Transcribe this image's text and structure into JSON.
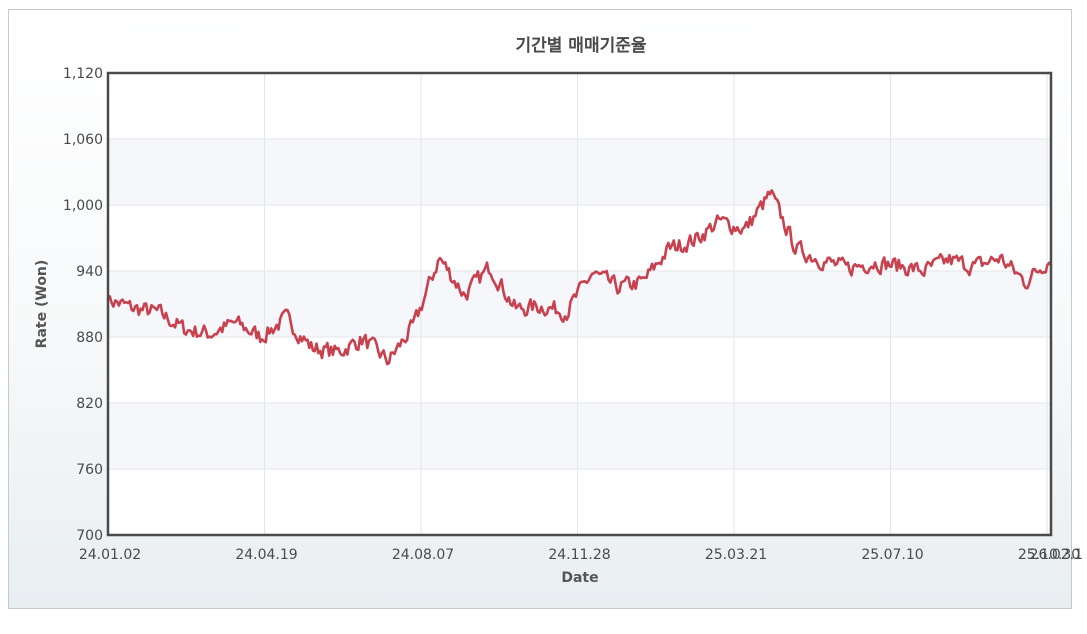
{
  "chart_data": {
    "type": "line",
    "title": "기간별 매매기준율",
    "xlabel": "Date",
    "ylabel": "Rate (Won)",
    "ylim": [
      700,
      1120
    ],
    "yticks": [
      700,
      760,
      820,
      880,
      940,
      1000,
      1060,
      1120
    ],
    "ytick_labels": [
      "700",
      "760",
      "820",
      "880",
      "940",
      "1,000",
      "1,060",
      "1,120"
    ],
    "xtick_labels": [
      "24.01.02",
      "24.04.19",
      "24.08.07",
      "24.11.28",
      "25.03.21",
      "25.07.10",
      "25.10.30",
      "26.02.1"
    ],
    "grid": true,
    "legend": "none",
    "line_color": "#c8414f",
    "x": [
      "24.01.02",
      "24.01.23",
      "24.02.13",
      "24.03.05",
      "24.03.26",
      "24.04.16",
      "24.05.07",
      "24.05.28",
      "24.06.18",
      "24.07.09",
      "24.07.30",
      "24.08.20",
      "24.09.10",
      "24.10.01",
      "24.10.22",
      "24.11.12",
      "24.12.03",
      "24.12.24",
      "25.01.14",
      "25.02.04",
      "25.02.25",
      "25.03.18",
      "25.04.08",
      "25.04.29",
      "25.05.20",
      "25.06.10",
      "25.07.01",
      "25.07.22",
      "25.08.12",
      "25.09.02",
      "25.09.23",
      "25.10.14",
      "25.11.04",
      "25.11.25",
      "25.12.16",
      "26.01.06",
      "26.01.27",
      "26.02.1"
    ],
    "values": [
      914,
      906,
      902,
      887,
      883,
      893,
      880,
      897,
      870,
      866,
      878,
      858,
      890,
      952,
      918,
      944,
      905,
      908,
      903,
      938,
      925,
      930,
      960,
      968,
      985,
      978,
      1010,
      960,
      950,
      942,
      948,
      945,
      940,
      950,
      944,
      952,
      930,
      952
    ]
  }
}
